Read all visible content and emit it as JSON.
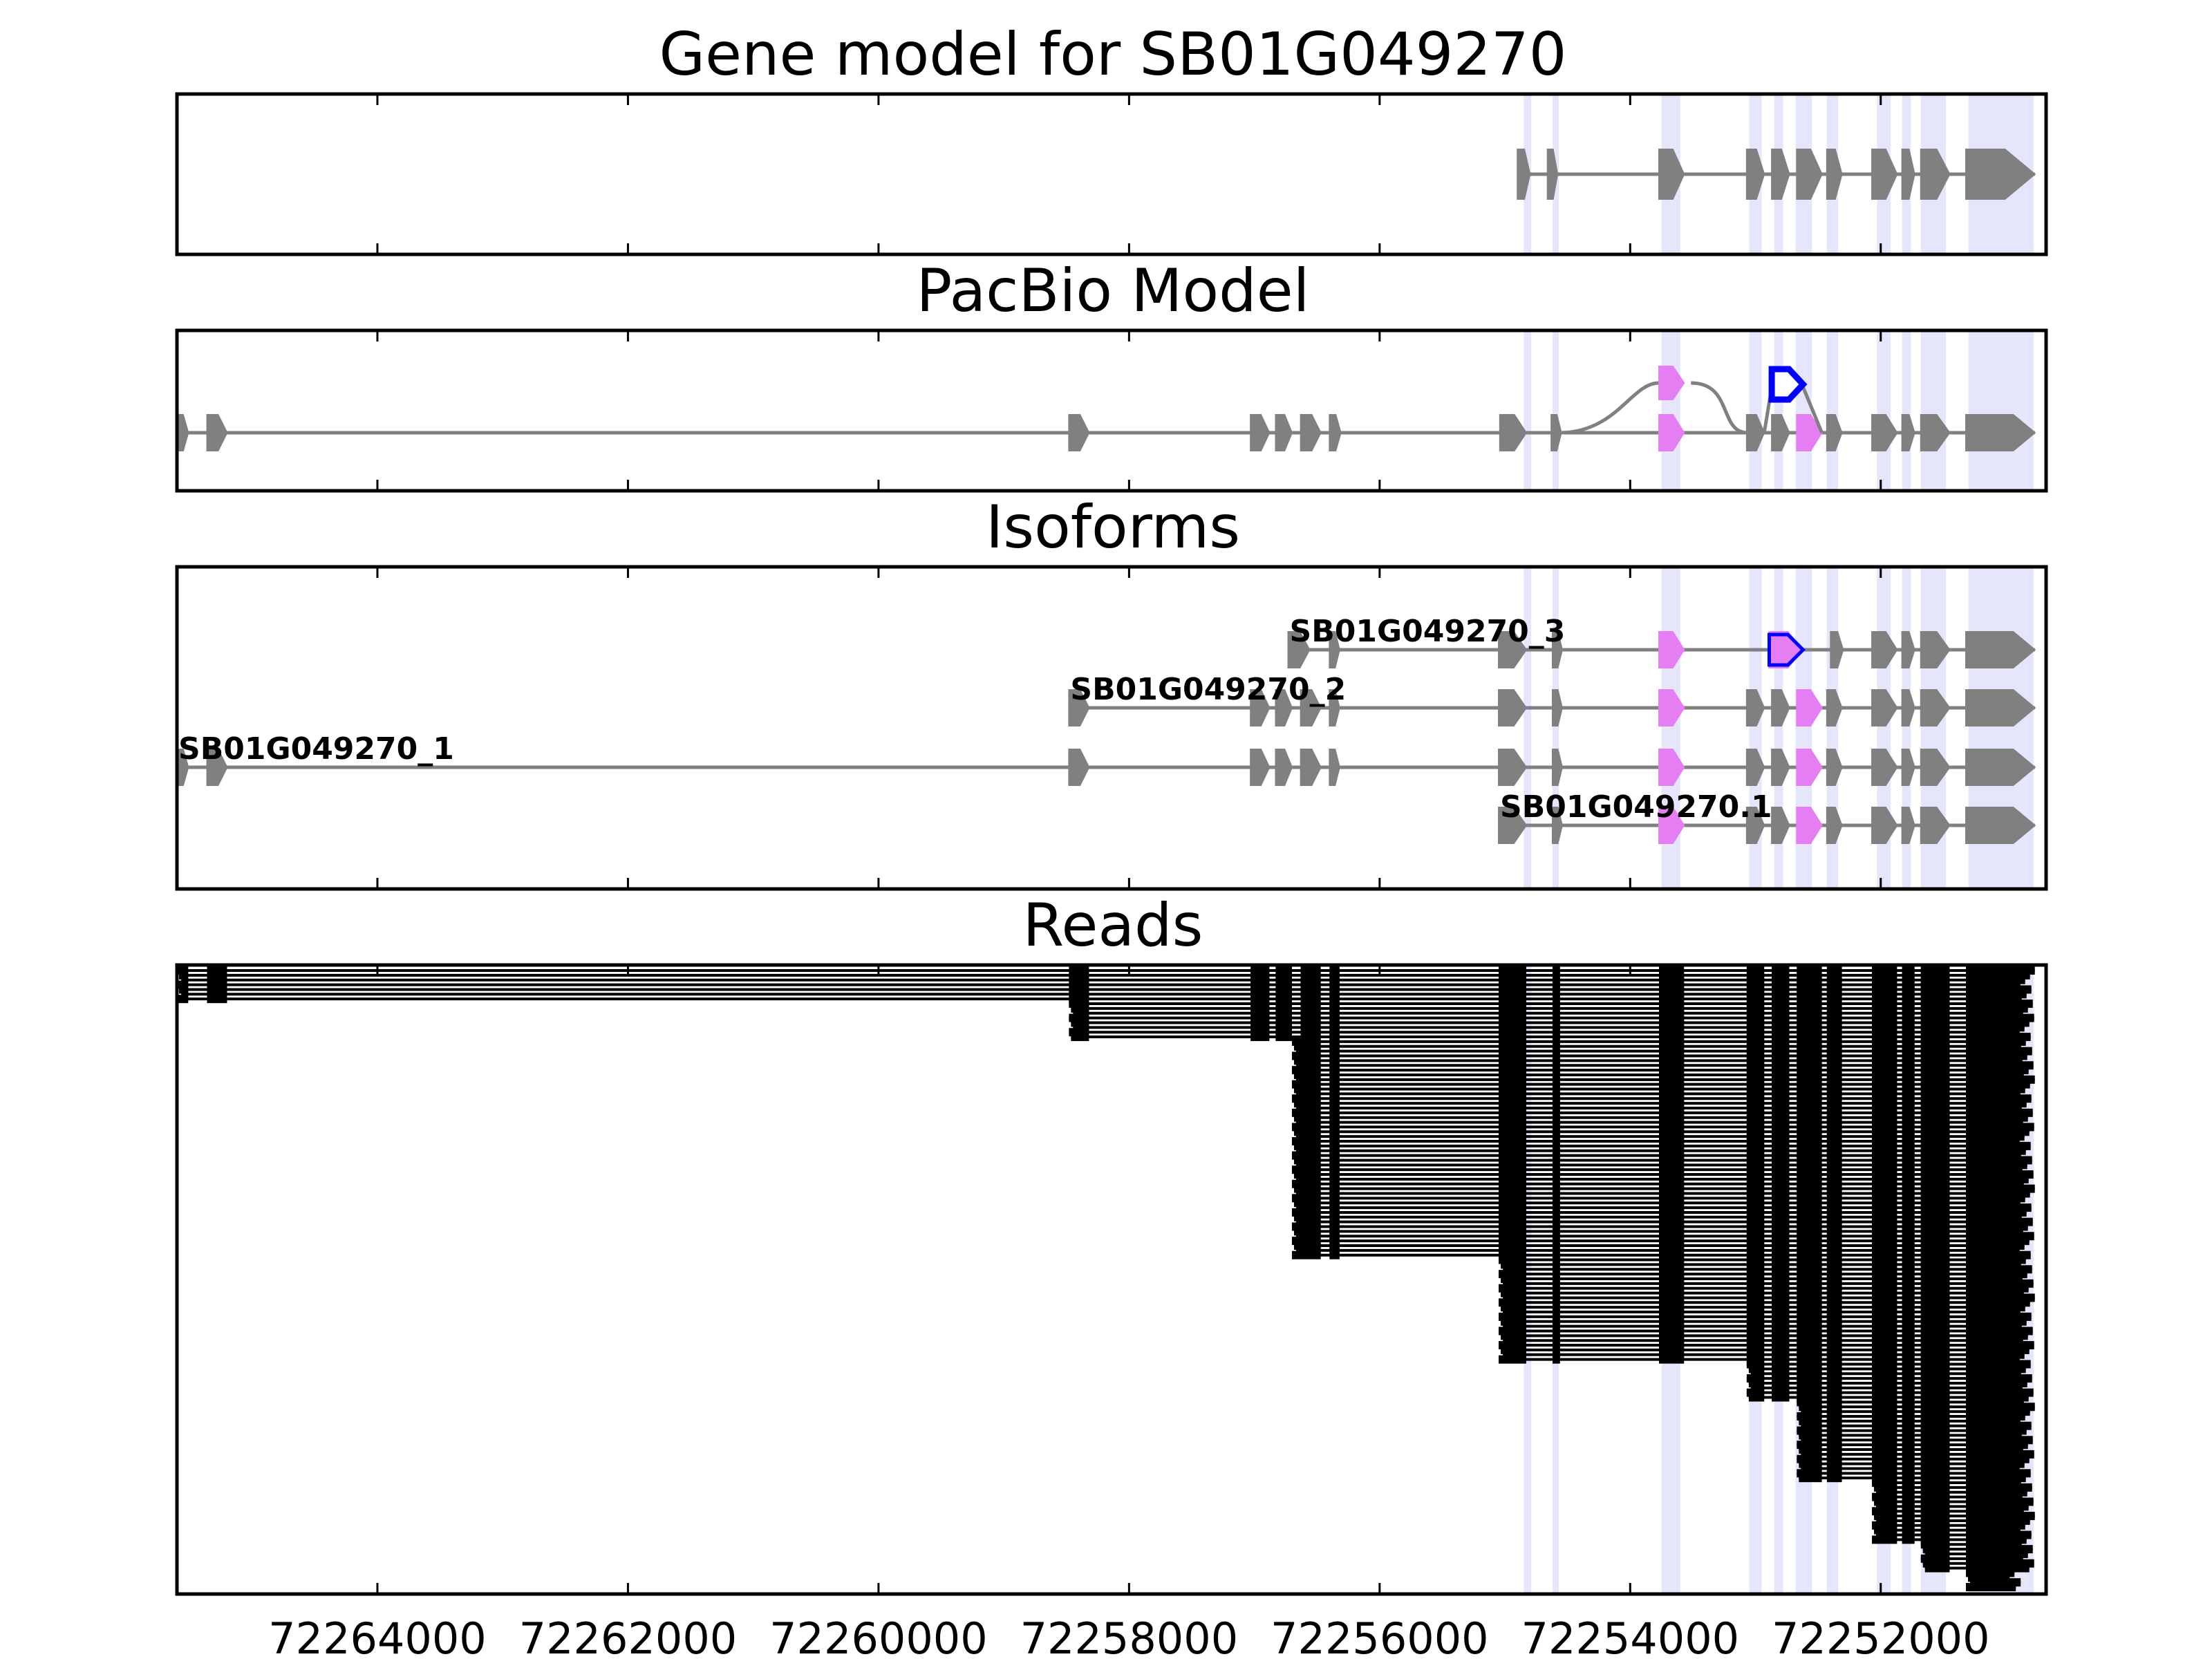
{
  "chart_data": {
    "type": "gene-track",
    "x_axis": {
      "reversed": true,
      "range": [
        72265600,
        72250680
      ],
      "ticks": [
        72264000,
        72262000,
        72260000,
        72258000,
        72256000,
        72254000,
        72252000
      ],
      "tick_labels": [
        "72264000",
        "72262000",
        "72260000",
        "72258000",
        "72256000",
        "72254000",
        "72252000"
      ]
    },
    "highlight_bands": [
      [
        72254850,
        72254790
      ],
      [
        72254620,
        72254570
      ],
      [
        72253750,
        72253600
      ],
      [
        72253050,
        72252950
      ],
      [
        72252850,
        72252780
      ],
      [
        72252680,
        72252550
      ],
      [
        72252430,
        72252340
      ],
      [
        72252030,
        72251920
      ],
      [
        72251830,
        72251760
      ],
      [
        72251680,
        72251480
      ],
      [
        72251300,
        72250780
      ]
    ],
    "panels": [
      {
        "title": "Gene model for SB01G049270",
        "tracks": [
          {
            "exons": [
              [
                72254900,
                72254800
              ],
              [
                72254660,
                72254580
              ],
              [
                72253770,
                72253570
              ],
              [
                72253070,
                72252930
              ],
              [
                72252870,
                72252730
              ],
              [
                72252670,
                72252470
              ],
              [
                72252430,
                72252310
              ],
              [
                72252070,
                72251870
              ],
              [
                72251830,
                72251730
              ],
              [
                72251680,
                72251450
              ],
              [
                72251320,
                72250770
              ]
            ]
          }
        ]
      },
      {
        "title": "PacBio Model",
        "tracks": [
          {
            "exons": [
              [
                72265600,
                72265510
              ],
              [
                72265360,
                72265200
              ],
              [
                72258480,
                72258320
              ],
              [
                72257030,
                72256880
              ],
              [
                72256830,
                72256700
              ],
              [
                72256630,
                72256470
              ],
              [
                72256400,
                72256310
              ],
              [
                72255040,
                72254830
              ],
              [
                72254630,
                72254550
              ],
              [
                72253770,
                72253570
              ],
              [
                72253070,
                72252930
              ],
              [
                72252870,
                72252730
              ],
              [
                72252670,
                72252470
              ],
              [
                72252430,
                72252310
              ],
              [
                72252070,
                72251870
              ],
              [
                72251830,
                72251730
              ],
              [
                72251680,
                72251450
              ],
              [
                72251320,
                72250770
              ]
            ]
          }
        ],
        "alt_exons": [
          {
            "exon": [
              72253770,
              72253570
            ],
            "kind": "skipped"
          },
          {
            "exon": [
              72252870,
              72252620
            ],
            "kind": "retained"
          }
        ]
      },
      {
        "title": "Isoforms",
        "isoforms": [
          {
            "label": "SB01G049270_3",
            "exons": [
              [
                72256730,
                72256560
              ],
              [
                72256400,
                72256320
              ],
              [
                72255050,
                72254830
              ],
              [
                72254620,
                72254560
              ],
              [
                72253770,
                72253570
              ],
              [
                72252890,
                72252620
              ],
              [
                72252400,
                72252300
              ],
              [
                72252070,
                72251870
              ],
              [
                72251830,
                72251730
              ],
              [
                72251680,
                72251450
              ],
              [
                72251320,
                72250770
              ]
            ]
          },
          {
            "label": "SB01G049270_2",
            "exons": [
              [
                72258480,
                72258320
              ],
              [
                72257030,
                72256880
              ],
              [
                72256830,
                72256700
              ],
              [
                72256630,
                72256470
              ],
              [
                72256400,
                72256320
              ],
              [
                72255050,
                72254830
              ],
              [
                72254620,
                72254560
              ],
              [
                72253770,
                72253570
              ],
              [
                72253070,
                72252930
              ],
              [
                72252870,
                72252730
              ],
              [
                72252670,
                72252470
              ],
              [
                72252430,
                72252310
              ],
              [
                72252070,
                72251870
              ],
              [
                72251830,
                72251730
              ],
              [
                72251680,
                72251450
              ],
              [
                72251320,
                72250770
              ]
            ]
          },
          {
            "label": "SB01G049270_1",
            "exons": [
              [
                72265600,
                72265510
              ],
              [
                72265360,
                72265200
              ],
              [
                72258480,
                72258320
              ],
              [
                72257030,
                72256880
              ],
              [
                72256830,
                72256700
              ],
              [
                72256630,
                72256470
              ],
              [
                72256400,
                72256320
              ],
              [
                72255050,
                72254830
              ],
              [
                72254620,
                72254560
              ],
              [
                72253770,
                72253570
              ],
              [
                72253070,
                72252930
              ],
              [
                72252870,
                72252730
              ],
              [
                72252670,
                72252470
              ],
              [
                72252430,
                72252310
              ],
              [
                72252070,
                72251870
              ],
              [
                72251830,
                72251730
              ],
              [
                72251680,
                72251450
              ],
              [
                72251320,
                72250770
              ]
            ]
          },
          {
            "label": "SB01G049270.1",
            "exons": [
              [
                72255050,
                72254830
              ],
              [
                72254620,
                72254560
              ],
              [
                72253770,
                72253570
              ],
              [
                72253070,
                72252930
              ],
              [
                72252870,
                72252730
              ],
              [
                72252670,
                72252470
              ],
              [
                72252430,
                72252310
              ],
              [
                72252070,
                72251870
              ],
              [
                72251830,
                72251730
              ],
              [
                72251680,
                72251450
              ],
              [
                72251320,
                72250770
              ]
            ]
          }
        ]
      },
      {
        "title": "Reads",
        "read_groups": [
          {
            "count": 7,
            "start": 72265600,
            "exons": [
              [
                72265600,
                72265510
              ],
              [
                72265360,
                72265200
              ],
              [
                72258480,
                72258320
              ],
              [
                72257030,
                72256880
              ],
              [
                72256830,
                72256700
              ],
              [
                72256630,
                72256470
              ],
              [
                72256400,
                72256320
              ],
              [
                72255050,
                72254830
              ],
              [
                72254620,
                72254560
              ],
              [
                72253770,
                72253570
              ],
              [
                72253070,
                72252930
              ],
              [
                72252870,
                72252730
              ],
              [
                72252670,
                72252470
              ],
              [
                72252430,
                72252310
              ],
              [
                72252070,
                72251870
              ],
              [
                72251830,
                72251730
              ],
              [
                72251680,
                72251450
              ],
              [
                72251320,
                72250770
              ]
            ]
          },
          {
            "count": 8,
            "start": 72258480,
            "exons": [
              [
                72258480,
                72258320
              ],
              [
                72257030,
                72256880
              ],
              [
                72256830,
                72256700
              ],
              [
                72256630,
                72256470
              ],
              [
                72256400,
                72256320
              ],
              [
                72255050,
                72254830
              ],
              [
                72254620,
                72254560
              ],
              [
                72253770,
                72253570
              ],
              [
                72253070,
                72252930
              ],
              [
                72252870,
                72252730
              ],
              [
                72252670,
                72252470
              ],
              [
                72252430,
                72252310
              ],
              [
                72252070,
                72251870
              ],
              [
                72251830,
                72251730
              ],
              [
                72251680,
                72251450
              ],
              [
                72251320,
                72250770
              ]
            ]
          },
          {
            "count": 46,
            "start": 72256700,
            "exons": [
              [
                72256700,
                72256470
              ],
              [
                72256400,
                72256320
              ],
              [
                72255050,
                72254830
              ],
              [
                72254620,
                72254560
              ],
              [
                72253770,
                72253570
              ],
              [
                72253070,
                72252930
              ],
              [
                72252870,
                72252730
              ],
              [
                72252670,
                72252470
              ],
              [
                72252430,
                72252310
              ],
              [
                72252070,
                72251870
              ],
              [
                72251830,
                72251730
              ],
              [
                72251680,
                72251450
              ],
              [
                72251320,
                72250770
              ]
            ]
          },
          {
            "count": 22,
            "start": 72255050,
            "exons": [
              [
                72255050,
                72254830
              ],
              [
                72254620,
                72254560
              ],
              [
                72253770,
                72253570
              ],
              [
                72253070,
                72252930
              ],
              [
                72252870,
                72252730
              ],
              [
                72252670,
                72252470
              ],
              [
                72252430,
                72252310
              ],
              [
                72252070,
                72251870
              ],
              [
                72251830,
                72251730
              ],
              [
                72251680,
                72251450
              ],
              [
                72251320,
                72250770
              ]
            ]
          },
          {
            "count": 8,
            "start": 72253070,
            "exons": [
              [
                72253070,
                72252930
              ],
              [
                72252870,
                72252730
              ],
              [
                72252670,
                72252470
              ],
              [
                72252430,
                72252310
              ],
              [
                72252070,
                72251870
              ],
              [
                72251830,
                72251730
              ],
              [
                72251680,
                72251450
              ],
              [
                72251320,
                72250770
              ]
            ]
          },
          {
            "count": 17,
            "start": 72252670,
            "exons": [
              [
                72252670,
                72252470
              ],
              [
                72252430,
                72252310
              ],
              [
                72252070,
                72251870
              ],
              [
                72251830,
                72251730
              ],
              [
                72251680,
                72251450
              ],
              [
                72251320,
                72250770
              ]
            ]
          },
          {
            "count": 13,
            "start": 72252070,
            "exons": [
              [
                72252070,
                72251870
              ],
              [
                72251830,
                72251730
              ],
              [
                72251680,
                72251450
              ],
              [
                72251320,
                72250770
              ]
            ]
          },
          {
            "count": 6,
            "start": 72251680,
            "exons": [
              [
                72251680,
                72251450
              ],
              [
                72251320,
                72250770
              ]
            ]
          },
          {
            "count": 4,
            "start": 72251320,
            "exons": [
              [
                72251320,
                72250850
              ]
            ]
          }
        ]
      }
    ]
  }
}
